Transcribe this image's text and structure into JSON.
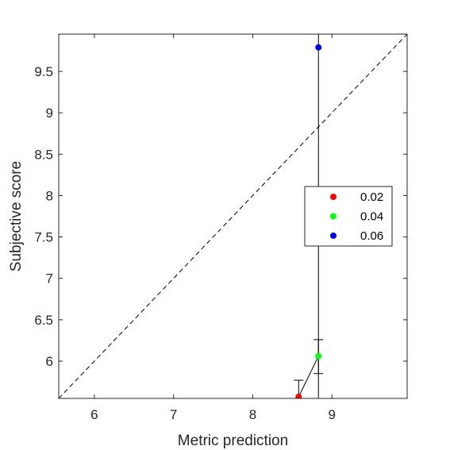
{
  "chart_data": {
    "type": "scatter",
    "xlabel": "Metric prediction",
    "ylabel": "Subjective score",
    "xlim": [
      5.55,
      9.95
    ],
    "ylim": [
      5.55,
      9.95
    ],
    "xticks": [
      6,
      7,
      8,
      9
    ],
    "yticks": [
      6,
      6.5,
      7,
      7.5,
      8,
      8.5,
      9,
      9.5
    ],
    "xtick_labels": [
      "6",
      "7",
      "8",
      "9"
    ],
    "ytick_labels": [
      "6",
      "6.5",
      "7",
      "7.5",
      "8",
      "8.5",
      "9",
      "9.5"
    ],
    "grid": false,
    "legend_position": "right",
    "identity_line": true,
    "series": [
      {
        "name": "0.02",
        "color": "#ff0000",
        "x": 8.58,
        "y": 5.57,
        "err_low": 0,
        "err_high": 0.2
      },
      {
        "name": "0.04",
        "color": "#00ff00",
        "x": 8.83,
        "y": 6.06,
        "err_low": 0.21,
        "err_high": 0.2
      },
      {
        "name": "0.06",
        "color": "#0000ff",
        "x": 8.83,
        "y": 9.79,
        "err_low": 4.25,
        "err_high": 0.5
      }
    ],
    "connector": [
      [
        8.58,
        5.57
      ],
      [
        8.83,
        6.06
      ]
    ]
  }
}
